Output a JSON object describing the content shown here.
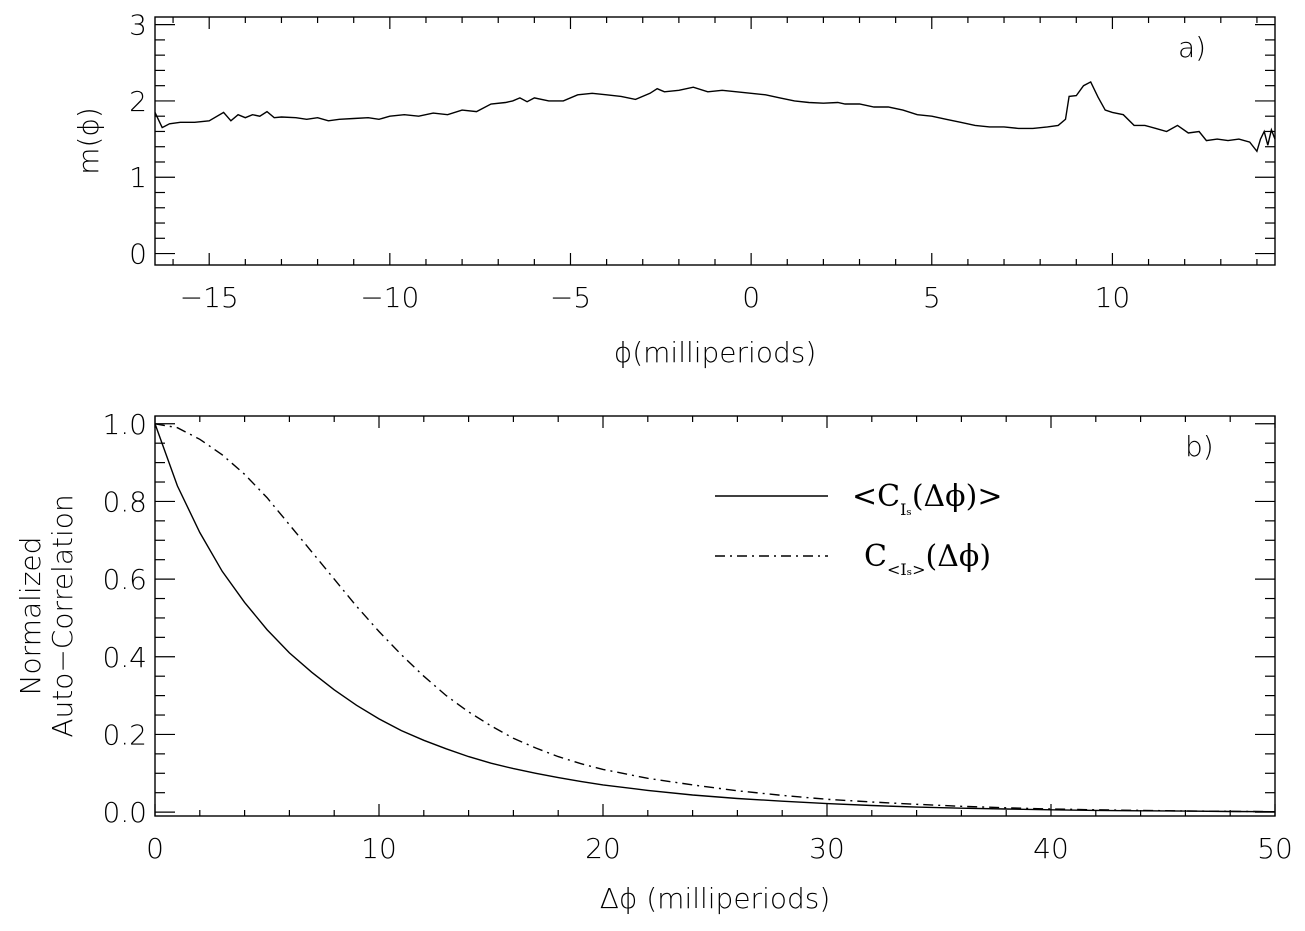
{
  "chart_data": [
    {
      "type": "line",
      "panel_label": "a)",
      "xlabel": "ϕ(milliperiods)",
      "ylabel": "m(ϕ)",
      "xlim": [
        -16.5,
        14.5
      ],
      "ylim": [
        -0.15,
        3.1
      ],
      "xticks": [
        -15,
        -10,
        -5,
        0,
        5,
        10
      ],
      "xtick_labels": [
        "−15",
        "−10",
        "−5",
        "0",
        "5",
        "10"
      ],
      "yticks": [
        0,
        1,
        2,
        3
      ],
      "ytick_labels": [
        "0",
        "1",
        "2",
        "3"
      ],
      "series": [
        {
          "name": "m(ϕ)",
          "style": "solid",
          "x": [
            -16.5,
            -16.3,
            -16.1,
            -15.8,
            -15.4,
            -15.0,
            -14.6,
            -14.4,
            -14.2,
            -14.0,
            -13.8,
            -13.6,
            -13.4,
            -13.2,
            -13.0,
            -12.6,
            -12.3,
            -12.0,
            -11.7,
            -11.4,
            -11.0,
            -10.6,
            -10.3,
            -10.0,
            -9.6,
            -9.2,
            -8.8,
            -8.4,
            -8.0,
            -7.6,
            -7.2,
            -6.8,
            -6.6,
            -6.4,
            -6.2,
            -6.0,
            -5.6,
            -5.2,
            -4.8,
            -4.4,
            -4.0,
            -3.6,
            -3.2,
            -2.8,
            -2.6,
            -2.4,
            -2.0,
            -1.6,
            -1.2,
            -0.8,
            -0.4,
            0.0,
            0.4,
            0.8,
            1.2,
            1.6,
            2.0,
            2.4,
            2.6,
            3.0,
            3.4,
            3.8,
            4.2,
            4.6,
            5.0,
            5.4,
            5.8,
            6.2,
            6.6,
            7.0,
            7.4,
            7.8,
            8.2,
            8.5,
            8.7,
            8.8,
            9.0,
            9.2,
            9.4,
            9.6,
            9.8,
            10.0,
            10.3,
            10.6,
            10.9,
            11.2,
            11.5,
            11.8,
            12.1,
            12.4,
            12.6,
            12.9,
            13.2,
            13.5,
            13.8,
            14.0,
            14.1,
            14.2,
            14.3,
            14.4,
            14.5
          ],
          "y": [
            1.85,
            1.65,
            1.7,
            1.72,
            1.72,
            1.74,
            1.85,
            1.74,
            1.82,
            1.78,
            1.82,
            1.8,
            1.86,
            1.78,
            1.79,
            1.78,
            1.76,
            1.78,
            1.74,
            1.76,
            1.77,
            1.78,
            1.76,
            1.8,
            1.82,
            1.8,
            1.84,
            1.82,
            1.88,
            1.86,
            1.96,
            1.98,
            2.0,
            2.04,
            1.99,
            2.04,
            2.0,
            2.0,
            2.08,
            2.1,
            2.08,
            2.06,
            2.02,
            2.1,
            2.16,
            2.12,
            2.14,
            2.18,
            2.12,
            2.14,
            2.12,
            2.1,
            2.08,
            2.04,
            2.0,
            1.98,
            1.97,
            1.98,
            1.96,
            1.96,
            1.92,
            1.92,
            1.88,
            1.82,
            1.8,
            1.76,
            1.72,
            1.68,
            1.66,
            1.66,
            1.64,
            1.64,
            1.66,
            1.68,
            1.76,
            2.06,
            2.07,
            2.2,
            2.25,
            2.05,
            1.88,
            1.85,
            1.82,
            1.68,
            1.68,
            1.64,
            1.6,
            1.68,
            1.58,
            1.6,
            1.48,
            1.5,
            1.48,
            1.5,
            1.46,
            1.34,
            1.5,
            1.6,
            1.42,
            1.62,
            1.5
          ]
        }
      ]
    },
    {
      "type": "line",
      "panel_label": "b)",
      "xlabel": "Δϕ  (milliperiods)",
      "ylabel": [
        "Normalized",
        "Auto−Correlation"
      ],
      "xlim": [
        0,
        50
      ],
      "ylim": [
        -0.01,
        1.02
      ],
      "xticks": [
        0,
        10,
        20,
        30,
        40,
        50
      ],
      "xtick_labels": [
        "0",
        "10",
        "20",
        "30",
        "40",
        "50"
      ],
      "yticks": [
        0.0,
        0.2,
        0.4,
        0.6,
        0.8,
        1.0
      ],
      "ytick_labels": [
        "0.0",
        "0.2",
        "0.4",
        "0.6",
        "0.8",
        "1.0"
      ],
      "legend_position": "top-right",
      "series": [
        {
          "name": "<C_Is(Δϕ)>",
          "legend_label": "<C",
          "legend_sub": "Iₛ",
          "legend_suffix": "(Δϕ)>",
          "style": "solid",
          "x": [
            0,
            1,
            2,
            3,
            4,
            5,
            6,
            7,
            8,
            9,
            10,
            11,
            12,
            13,
            14,
            15,
            16,
            17,
            18,
            19,
            20,
            22,
            24,
            26,
            28,
            30,
            32,
            34,
            36,
            38,
            40,
            42,
            44,
            46,
            48,
            50
          ],
          "y": [
            1.0,
            0.84,
            0.72,
            0.62,
            0.54,
            0.47,
            0.41,
            0.36,
            0.315,
            0.275,
            0.24,
            0.21,
            0.185,
            0.163,
            0.143,
            0.126,
            0.112,
            0.1,
            0.089,
            0.079,
            0.07,
            0.056,
            0.044,
            0.035,
            0.028,
            0.022,
            0.017,
            0.013,
            0.01,
            0.008,
            0.006,
            0.0045,
            0.0035,
            0.0025,
            0.0015,
            0.001
          ]
        },
        {
          "name": "C_<Is>(Δϕ)",
          "legend_label": "C",
          "legend_sub": "<Iₛ>",
          "legend_suffix": "(Δϕ)",
          "style": "dash-dot",
          "x": [
            0,
            1,
            2,
            3,
            4,
            5,
            6,
            7,
            8,
            9,
            10,
            11,
            12,
            13,
            14,
            15,
            16,
            17,
            18,
            19,
            20,
            22,
            24,
            26,
            28,
            30,
            32,
            34,
            36,
            38,
            40,
            42,
            44,
            46,
            48,
            50
          ],
          "y": [
            1.0,
            0.99,
            0.96,
            0.92,
            0.87,
            0.81,
            0.74,
            0.67,
            0.6,
            0.53,
            0.465,
            0.405,
            0.35,
            0.3,
            0.258,
            0.222,
            0.19,
            0.165,
            0.143,
            0.125,
            0.11,
            0.087,
            0.07,
            0.055,
            0.043,
            0.033,
            0.026,
            0.02,
            0.015,
            0.011,
            0.008,
            0.006,
            0.0045,
            0.003,
            0.002,
            0.001
          ]
        }
      ]
    }
  ]
}
